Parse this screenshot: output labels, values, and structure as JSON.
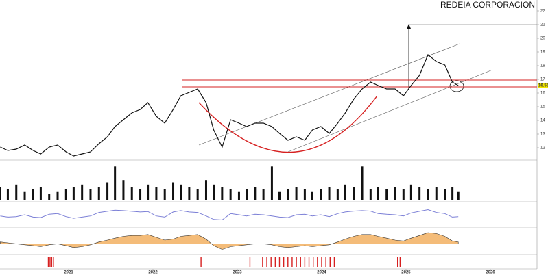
{
  "chart_data": {
    "type": "line",
    "title": "REDEIA CORPORACION",
    "color": "#111111",
    "x": [
      2020.19,
      2020.28,
      2020.38,
      2020.48,
      2020.58,
      2020.67,
      2020.77,
      2020.87,
      2020.97,
      2021.06,
      2021.16,
      2021.26,
      2021.36,
      2021.46,
      2021.55,
      2021.65,
      2021.75,
      2021.85,
      2021.94,
      2022.04,
      2022.14,
      2022.24,
      2022.33,
      2022.43,
      2022.53,
      2022.63,
      2022.72,
      2022.82,
      2022.92,
      2023.02,
      2023.11,
      2023.21,
      2023.31,
      2023.41,
      2023.5,
      2023.6,
      2023.7,
      2023.8,
      2023.89,
      2023.99,
      2024.09,
      2024.19,
      2024.28,
      2024.38,
      2024.48,
      2024.58,
      2024.67,
      2024.77,
      2024.87,
      2024.97,
      2025.06,
      2025.16,
      2025.26,
      2025.36,
      2025.46,
      2025.55,
      2025.62
    ],
    "values": [
      12.05,
      11.8,
      11.9,
      12.2,
      11.8,
      11.55,
      12.05,
      12.2,
      11.7,
      11.4,
      11.55,
      11.7,
      12.3,
      12.8,
      13.55,
      14.05,
      14.55,
      14.8,
      15.3,
      14.3,
      13.8,
      14.8,
      15.8,
      16.05,
      16.3,
      15.3,
      13.3,
      12.05,
      14.05,
      13.8,
      13.55,
      13.8,
      13.8,
      13.55,
      13.05,
      12.55,
      12.8,
      12.55,
      13.3,
      13.55,
      13.05,
      13.8,
      14.55,
      15.55,
      16.3,
      16.8,
      16.55,
      16.3,
      16.3,
      15.8,
      16.55,
      17.3,
      18.8,
      18.3,
      18.05,
      16.8,
      16.55
    ],
    "xlim": [
      2020.187,
      2026.553
    ],
    "xticks": [
      2021,
      2022,
      2023,
      2024,
      2025,
      2026
    ],
    "ylim": [
      11.2,
      22.55
    ],
    "yticks": [
      12,
      13,
      14,
      15,
      16,
      17,
      18,
      19,
      20,
      21,
      22
    ],
    "levels": [
      16.95,
      16.45
    ],
    "level_color": "#d62020",
    "volume": {
      "color": "#111111",
      "ylim": [
        0,
        16
      ],
      "values": [
        6,
        5,
        7,
        4,
        5,
        6,
        3,
        4,
        5,
        6,
        7,
        5,
        6,
        8,
        15,
        9,
        6,
        5,
        7,
        6,
        5,
        8,
        7,
        6,
        5,
        9,
        7,
        6,
        5,
        4,
        5,
        6,
        5,
        15,
        4,
        5,
        6,
        5,
        4,
        5,
        6,
        5,
        7,
        6,
        15,
        5,
        6,
        5,
        6,
        5,
        7,
        6,
        5,
        6,
        5,
        6,
        4
      ]
    },
    "rsi": {
      "color": "#7b7fd6",
      "ylim": [
        0,
        100
      ],
      "values": [
        45,
        40,
        42,
        50,
        40,
        38,
        52,
        55,
        42,
        35,
        40,
        45,
        60,
        65,
        70,
        68,
        65,
        62,
        64,
        45,
        40,
        62,
        68,
        62,
        60,
        45,
        30,
        28,
        55,
        50,
        45,
        52,
        50,
        45,
        40,
        38,
        50,
        52,
        45,
        50,
        42,
        55,
        62,
        66,
        68,
        66,
        55,
        52,
        50,
        45,
        58,
        65,
        72,
        60,
        55,
        40,
        42
      ]
    },
    "macd": {
      "color": "#f0a040",
      "ylim": [
        -1,
        1.5
      ],
      "values": [
        0.2,
        0.1,
        0,
        -0.1,
        -0.2,
        -0.3,
        -0.1,
        0,
        -0.2,
        -0.4,
        -0.3,
        -0.1,
        0.2,
        0.4,
        0.6,
        0.8,
        0.9,
        0.9,
        1,
        0.7,
        0.4,
        0.5,
        0.8,
        0.9,
        1,
        0.5,
        -0.2,
        -0.6,
        -0.3,
        -0.2,
        -0.1,
        0,
        0,
        -0.1,
        -0.3,
        -0.4,
        -0.3,
        -0.2,
        -0.3,
        -0.2,
        -0.1,
        0.2,
        0.5,
        0.8,
        1,
        1,
        0.8,
        0.6,
        0.4,
        0.3,
        0.6,
        0.9,
        1.2,
        1.1,
        0.8,
        0.3,
        0.2
      ]
    },
    "signals": {
      "color": "#d62020",
      "x": [
        2020.76,
        2020.78,
        2020.8,
        2020.82,
        2022.57,
        2023.15,
        2023.3,
        2023.35,
        2023.4,
        2023.45,
        2023.5,
        2023.55,
        2023.6,
        2023.65,
        2023.7,
        2023.75,
        2023.8,
        2023.85,
        2023.9,
        2023.95,
        2024.0,
        2024.05,
        2024.1,
        2024.15,
        2024.9,
        2024.93
      ]
    }
  }
}
